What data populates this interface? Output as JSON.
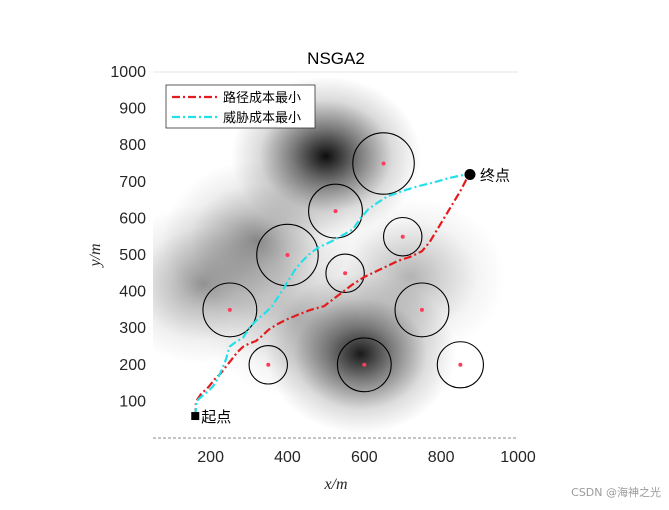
{
  "chart_data": {
    "type": "line",
    "title": "NSGA2",
    "xlabel": "x/m",
    "ylabel": "y/m",
    "xlim": [
      50,
      1000
    ],
    "ylim": [
      0,
      1000
    ],
    "xticks": [
      200,
      400,
      600,
      800,
      1000
    ],
    "yticks": [
      100,
      200,
      300,
      400,
      500,
      600,
      700,
      800,
      900,
      1000
    ],
    "legend_position": "top-left",
    "series": [
      {
        "name": "路径成本最小",
        "color": "#e41a1c",
        "style": "dash-dot",
        "points": [
          [
            160,
            60
          ],
          [
            162,
            100
          ],
          [
            175,
            120
          ],
          [
            195,
            140
          ],
          [
            210,
            160
          ],
          [
            225,
            175
          ],
          [
            240,
            195
          ],
          [
            255,
            215
          ],
          [
            270,
            235
          ],
          [
            285,
            250
          ],
          [
            300,
            258
          ],
          [
            318,
            265
          ],
          [
            335,
            280
          ],
          [
            350,
            295
          ],
          [
            372,
            310
          ],
          [
            400,
            325
          ],
          [
            430,
            338
          ],
          [
            460,
            350
          ],
          [
            495,
            360
          ],
          [
            520,
            380
          ],
          [
            545,
            400
          ],
          [
            570,
            420
          ],
          [
            600,
            440
          ],
          [
            630,
            455
          ],
          [
            660,
            470
          ],
          [
            690,
            485
          ],
          [
            720,
            495
          ],
          [
            750,
            510
          ],
          [
            770,
            535
          ],
          [
            790,
            570
          ],
          [
            810,
            605
          ],
          [
            830,
            640
          ],
          [
            850,
            675
          ],
          [
            865,
            705
          ],
          [
            875,
            720
          ]
        ]
      },
      {
        "name": "威胁成本最小",
        "color": "#22e0e8",
        "style": "dash-dot",
        "points": [
          [
            160,
            60
          ],
          [
            163,
            100
          ],
          [
            175,
            112
          ],
          [
            190,
            125
          ],
          [
            205,
            140
          ],
          [
            218,
            160
          ],
          [
            230,
            190
          ],
          [
            240,
            215
          ],
          [
            245,
            235
          ],
          [
            250,
            250
          ],
          [
            265,
            262
          ],
          [
            285,
            275
          ],
          [
            300,
            300
          ],
          [
            320,
            322
          ],
          [
            340,
            340
          ],
          [
            360,
            360
          ],
          [
            375,
            385
          ],
          [
            390,
            408
          ],
          [
            405,
            435
          ],
          [
            420,
            460
          ],
          [
            440,
            485
          ],
          [
            460,
            505
          ],
          [
            480,
            520
          ],
          [
            500,
            530
          ],
          [
            520,
            540
          ],
          [
            545,
            555
          ],
          [
            570,
            570
          ],
          [
            590,
            600
          ],
          [
            610,
            625
          ],
          [
            630,
            640
          ],
          [
            660,
            660
          ],
          [
            700,
            675
          ],
          [
            740,
            688
          ],
          [
            780,
            698
          ],
          [
            820,
            710
          ],
          [
            855,
            718
          ],
          [
            875,
            722
          ]
        ]
      }
    ],
    "threats": [
      {
        "x": 650,
        "y": 750,
        "r": 80
      },
      {
        "x": 525,
        "y": 620,
        "r": 70
      },
      {
        "x": 700,
        "y": 550,
        "r": 50
      },
      {
        "x": 400,
        "y": 500,
        "r": 80
      },
      {
        "x": 550,
        "y": 450,
        "r": 50
      },
      {
        "x": 250,
        "y": 350,
        "r": 70
      },
      {
        "x": 750,
        "y": 350,
        "r": 70
      },
      {
        "x": 350,
        "y": 200,
        "r": 50
      },
      {
        "x": 600,
        "y": 200,
        "r": 70
      },
      {
        "x": 850,
        "y": 200,
        "r": 60
      }
    ],
    "heat_blobs": [
      {
        "x": 500,
        "y": 770,
        "strength": 0.95
      },
      {
        "x": 590,
        "y": 230,
        "strength": 0.9
      },
      {
        "x": 320,
        "y": 540,
        "strength": 0.45
      },
      {
        "x": 180,
        "y": 420,
        "strength": 0.4
      },
      {
        "x": 720,
        "y": 440,
        "strength": 0.3
      },
      {
        "x": 420,
        "y": 330,
        "strength": 0.25
      }
    ],
    "start": {
      "x": 160,
      "y": 60,
      "label": "起点"
    },
    "end": {
      "x": 875,
      "y": 720,
      "label": "终点"
    }
  },
  "watermark": "CSDN @海神之光"
}
